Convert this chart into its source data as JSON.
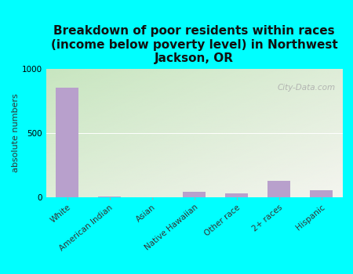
{
  "title": "Breakdown of poor residents within races\n(income below poverty level) in Northwest\nJackson, OR",
  "ylabel": "absolute numbers",
  "categories": [
    "White",
    "American Indian",
    "Asian",
    "Native Hawaiian",
    "Other race",
    "2+ races",
    "Hispanic"
  ],
  "values": [
    850,
    8,
    0,
    40,
    28,
    130,
    55
  ],
  "bar_color": "#b8a0cc",
  "ylim": [
    0,
    1000
  ],
  "yticks": [
    0,
    500,
    1000
  ],
  "background_color": "#00ffff",
  "plot_bg_color_topleft": "#c8e6c0",
  "plot_bg_color_bottomright": "#f5f5f0",
  "watermark": "City-Data.com",
  "title_fontsize": 11,
  "ylabel_fontsize": 8,
  "tick_fontsize": 7.5
}
